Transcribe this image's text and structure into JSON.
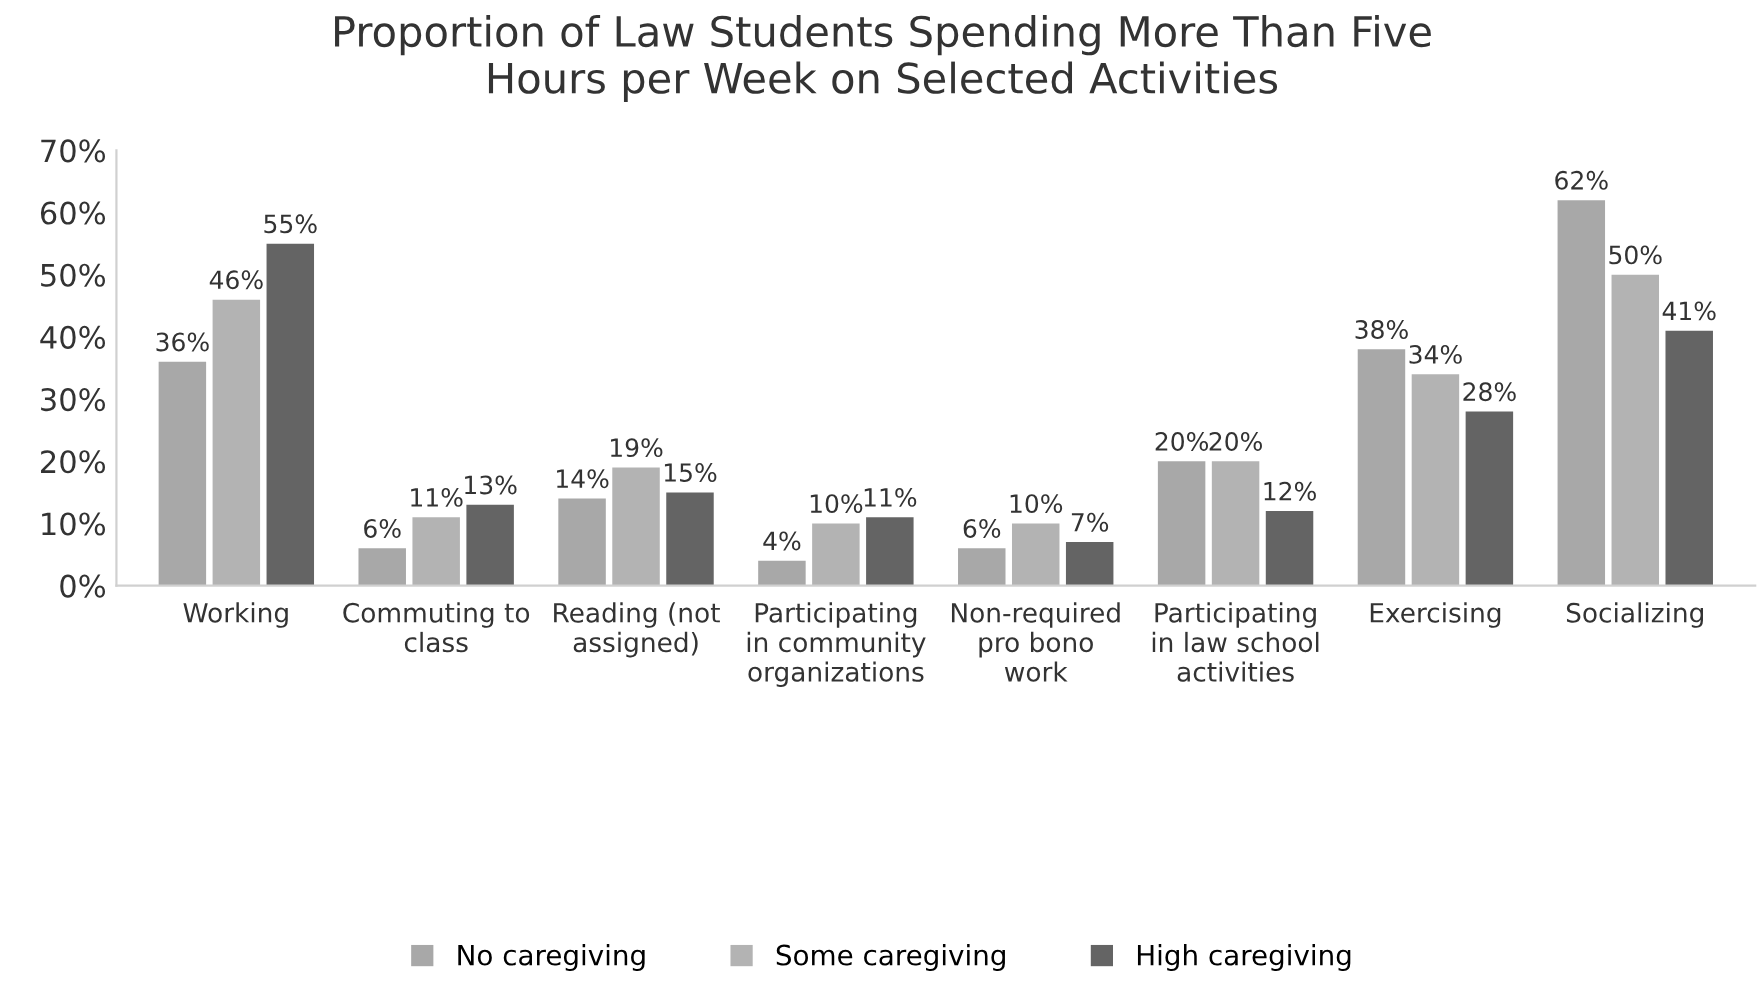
{
  "chart_data": {
    "type": "bar",
    "title": "Proportion of Law Students Spending More Than Five\nHours per Week on Selected Activities",
    "categories": [
      "Working",
      "Commuting to\nclass",
      "Reading (not\nassigned)",
      "Participating\nin community\norganizations",
      "Non-required\npro bono\nwork",
      "Participating\nin law school\nactivities",
      "Exercising",
      "Socializing"
    ],
    "series": [
      {
        "name": "No caregiving",
        "color": "#a8a8a8",
        "values": [
          36,
          6,
          14,
          4,
          6,
          20,
          38,
          62
        ],
        "value_labels": [
          "36%",
          "6%",
          "14%",
          "4%",
          "6%",
          "20%",
          "38%",
          "62%"
        ]
      },
      {
        "name": "Some caregiving",
        "color": "#b3b3b3",
        "values": [
          46,
          11,
          19,
          10,
          10,
          20,
          34,
          50
        ],
        "value_labels": [
          "46%",
          "11%",
          "19%",
          "10%",
          "10%",
          "20%",
          "34%",
          "50%"
        ]
      },
      {
        "name": "High caregiving",
        "color": "#646464",
        "values": [
          55,
          13,
          15,
          11,
          7,
          12,
          28,
          41
        ],
        "value_labels": [
          "55%",
          "13%",
          "15%",
          "11%",
          "7%",
          "12%",
          "28%",
          "41%"
        ]
      }
    ],
    "ylim": [
      0,
      70
    ],
    "yticks": [
      {
        "value": 0,
        "label": "0%"
      },
      {
        "value": 10,
        "label": "10%"
      },
      {
        "value": 20,
        "label": "20%"
      },
      {
        "value": 30,
        "label": "30%"
      },
      {
        "value": 40,
        "label": "40%"
      },
      {
        "value": 50,
        "label": "50%"
      },
      {
        "value": 60,
        "label": "60%"
      },
      {
        "value": 70,
        "label": "70%"
      }
    ],
    "grid": false,
    "legend": "bottom"
  }
}
